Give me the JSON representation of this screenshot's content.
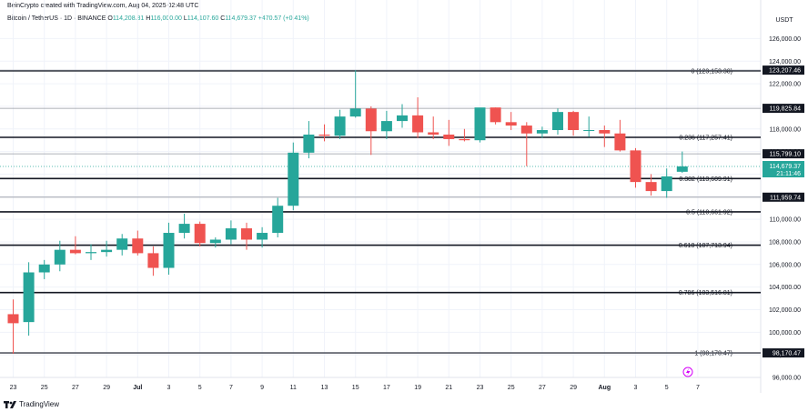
{
  "header": {
    "credit": "BeinCrypto created with TradingView.com, Aug 04, 2025 02:48 UTC",
    "symbol": "Bitcoin / TetherUS · 1D · BINANCE",
    "o_label": "O",
    "o_value": "114,208.81",
    "h_label": "H",
    "h_value": "116,000.00",
    "l_label": "L",
    "l_value": "114,107.60",
    "c_label": "C",
    "c_value": "114,679.37",
    "change": "+470.57 (+0.41%)"
  },
  "footer": {
    "brand": "TradingView"
  },
  "colors": {
    "up": "#26a69a",
    "down": "#ef5350",
    "line": "#131722",
    "grid": "#f0f3fa"
  },
  "chart_data": {
    "type": "candlestick",
    "currency_label": "USDT",
    "ylim": [
      96000,
      127000
    ],
    "y_ticks": [
      "126,000.00",
      "124,000.00",
      "122,000.00",
      "120,000.00",
      "118,000.00",
      "116,000.00",
      "114,000.00",
      "112,000.00",
      "110,000.00",
      "108,000.00",
      "106,000.00",
      "104,000.00",
      "102,000.00",
      "100,000.00",
      "98,000.00",
      "96,000.00"
    ],
    "x_ticks": [
      "23",
      "25",
      "27",
      "29",
      "Jul",
      "3",
      "5",
      "7",
      "9",
      "11",
      "13",
      "15",
      "17",
      "19",
      "21",
      "23",
      "25",
      "27",
      "29",
      "Aug",
      "3",
      "5",
      "7"
    ],
    "x_tick_days": [
      0,
      2,
      4,
      6,
      8,
      10,
      12,
      14,
      16,
      18,
      20,
      22,
      24,
      26,
      28,
      30,
      32,
      34,
      36,
      38,
      40,
      42,
      44
    ],
    "candles": [
      [
        101600,
        102900,
        98100,
        100800
      ],
      [
        100900,
        106200,
        99700,
        105300
      ],
      [
        105300,
        106400,
        104700,
        106000
      ],
      [
        106000,
        108100,
        105400,
        107300
      ],
      [
        107300,
        108500,
        106900,
        107000
      ],
      [
        107000,
        107800,
        106400,
        107100
      ],
      [
        107100,
        108100,
        106700,
        107300
      ],
      [
        107300,
        108700,
        106800,
        108300
      ],
      [
        108300,
        109000,
        106800,
        107000
      ],
      [
        107000,
        107600,
        105000,
        105700
      ],
      [
        105700,
        109700,
        105100,
        108800
      ],
      [
        108800,
        110500,
        108300,
        109600
      ],
      [
        109600,
        109800,
        107600,
        107900
      ],
      [
        107900,
        108400,
        107500,
        108200
      ],
      [
        108200,
        109900,
        107800,
        109200
      ],
      [
        109200,
        109700,
        107300,
        108200
      ],
      [
        108200,
        109300,
        107500,
        108800
      ],
      [
        108800,
        111900,
        108400,
        111200
      ],
      [
        111200,
        116800,
        110800,
        115900
      ],
      [
        115900,
        118700,
        115400,
        117500
      ],
      [
        117500,
        118400,
        116900,
        117400
      ],
      [
        117400,
        119700,
        117100,
        119100
      ],
      [
        119100,
        123200,
        119000,
        119800
      ],
      [
        119800,
        120000,
        115700,
        117800
      ],
      [
        117800,
        119600,
        117100,
        118700
      ],
      [
        118700,
        120200,
        118100,
        119200
      ],
      [
        119200,
        120800,
        117200,
        117700
      ],
      [
        117700,
        119100,
        117100,
        117500
      ],
      [
        117500,
        118800,
        116500,
        117100
      ],
      [
        117100,
        118000,
        116900,
        117000
      ],
      [
        117000,
        119800,
        116800,
        119900
      ],
      [
        119900,
        119900,
        118400,
        118600
      ],
      [
        118600,
        119500,
        117900,
        118300
      ],
      [
        118300,
        118600,
        114700,
        117600
      ],
      [
        117600,
        118200,
        117200,
        117900
      ],
      [
        117900,
        119800,
        117500,
        119500
      ],
      [
        119500,
        119600,
        117400,
        117900
      ],
      [
        117900,
        119100,
        117300,
        117900
      ],
      [
        117900,
        118300,
        116400,
        117600
      ],
      [
        117600,
        118800,
        116000,
        116100
      ],
      [
        116100,
        116300,
        112800,
        113300
      ],
      [
        113300,
        114000,
        112100,
        112500
      ],
      [
        112500,
        114500,
        111900,
        113800
      ],
      [
        114208.81,
        116000,
        114107.6,
        114679.37
      ]
    ],
    "fib_levels": [
      {
        "label": "0 (123,153.38)",
        "value": 123153.38
      },
      {
        "label": "0.236 (117,257.41)",
        "value": 117257.41
      },
      {
        "label": "0.382 (113,609.91)",
        "value": 113609.91
      },
      {
        "label": "0.5 (110,661.92)",
        "value": 110661.92
      },
      {
        "label": "0.618 (107,713.94)",
        "value": 107713.94
      },
      {
        "label": "0.786 (103,516.81)",
        "value": 103516.81
      },
      {
        "label": "1 (98,170.47)",
        "value": 98170.47
      }
    ],
    "price_lines": [
      {
        "label": "123,207.46",
        "value": 123207.46
      },
      {
        "label": "119,825.84",
        "value": 119825.84
      },
      {
        "label": "115,799.10",
        "value": 115799.1
      },
      {
        "label": "111,959.74",
        "value": 111959.74
      },
      {
        "label": "98,170.47",
        "value": 98170.47
      }
    ],
    "last_price": {
      "label": "114,679.37",
      "countdown": "21:11:46",
      "value": 114679.37
    }
  }
}
